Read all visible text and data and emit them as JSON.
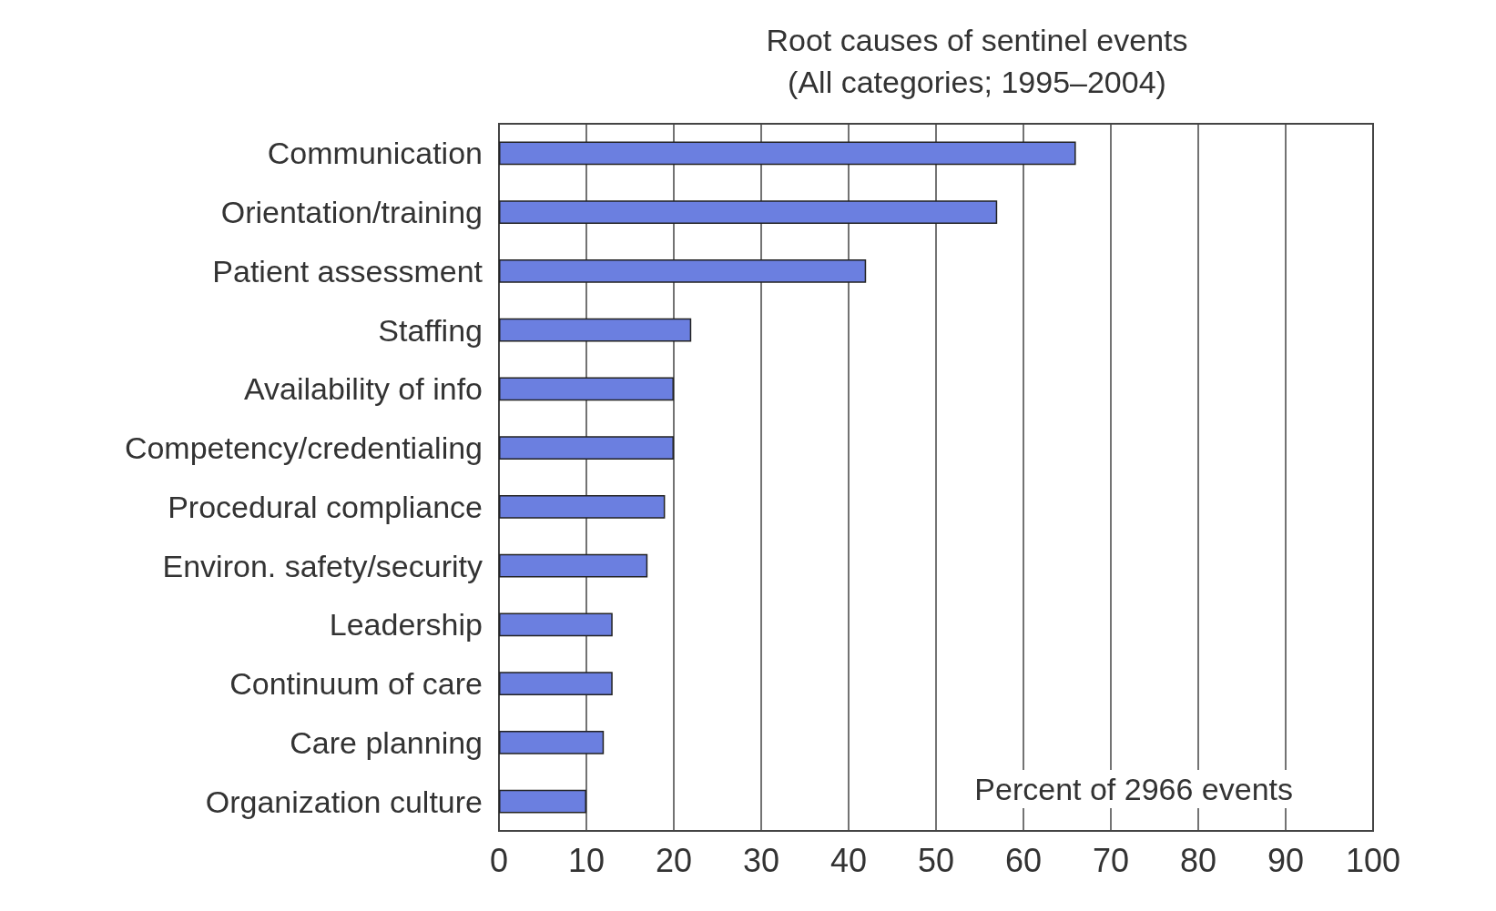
{
  "chart_data": {
    "type": "bar",
    "orientation": "horizontal",
    "title": "Root causes of sentinel events\n(All categories; 1995–2004)",
    "xlabel": "Percent of 2966 events",
    "categories": [
      "Communication",
      "Orientation/training",
      "Patient assessment",
      "Staffing",
      "Availability of info",
      "Competency/credentialing",
      "Procedural compliance",
      "Environ. safety/security",
      "Leadership",
      "Continuum of care",
      "Care planning",
      "Organization culture"
    ],
    "values": [
      66,
      57,
      42,
      22,
      20,
      20,
      19,
      17,
      13,
      13,
      12,
      10
    ],
    "color": "#6b7fe0",
    "xlim": [
      0,
      100
    ],
    "xticks": [
      0,
      10,
      20,
      30,
      40,
      50,
      60,
      70,
      80,
      90,
      100
    ],
    "grid": "x"
  }
}
